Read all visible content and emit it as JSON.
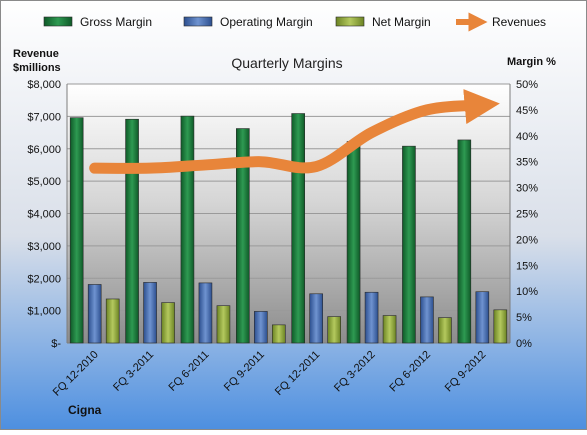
{
  "chart_data": {
    "type": "bar",
    "title": "Quarterly Margins",
    "left_axis_label_line1": "Revenue",
    "left_axis_label_line2": "$millions",
    "right_axis_label": "Margin %",
    "footer_label": "Cigna",
    "categories": [
      "FQ 12-2010",
      "FQ 3-2011",
      "FQ 6-2011",
      "FQ 9-2011",
      "FQ 12-2011",
      "FQ 3-2012",
      "FQ 6-2012",
      "FQ 9-2012"
    ],
    "left_axis": {
      "min": 0,
      "max": 8000,
      "ticks": [
        "$-",
        "$1,000",
        "$2,000",
        "$3,000",
        "$4,000",
        "$5,000",
        "$6,000",
        "$7,000",
        "$8,000"
      ]
    },
    "right_axis": {
      "min": 0,
      "max": 50,
      "ticks": [
        "0%",
        "5%",
        "10%",
        "15%",
        "20%",
        "25%",
        "30%",
        "35%",
        "40%",
        "45%",
        "50%"
      ]
    },
    "series": [
      {
        "name": "Gross Margin",
        "kind": "bar",
        "axis": "right",
        "color": "#1e7a3e",
        "values": [
          43.5,
          43.2,
          43.8,
          41.4,
          44.3,
          38.9,
          38.0,
          39.2
        ]
      },
      {
        "name": "Operating Margin",
        "kind": "bar",
        "axis": "right",
        "color": "#4a6fb0",
        "values": [
          11.3,
          11.7,
          11.6,
          6.1,
          9.5,
          9.8,
          8.9,
          9.9
        ]
      },
      {
        "name": "Net Margin",
        "kind": "bar",
        "axis": "right",
        "color": "#8fa83c",
        "values": [
          8.5,
          7.8,
          7.2,
          3.5,
          5.1,
          5.3,
          4.9,
          6.4
        ]
      },
      {
        "name": "Revenues",
        "kind": "line",
        "axis": "left",
        "color": "#e8853a",
        "values": [
          5400,
          5400,
          5500,
          5600,
          5450,
          6500,
          7200,
          7350
        ]
      }
    ],
    "grid": true,
    "legend_position": "top"
  }
}
